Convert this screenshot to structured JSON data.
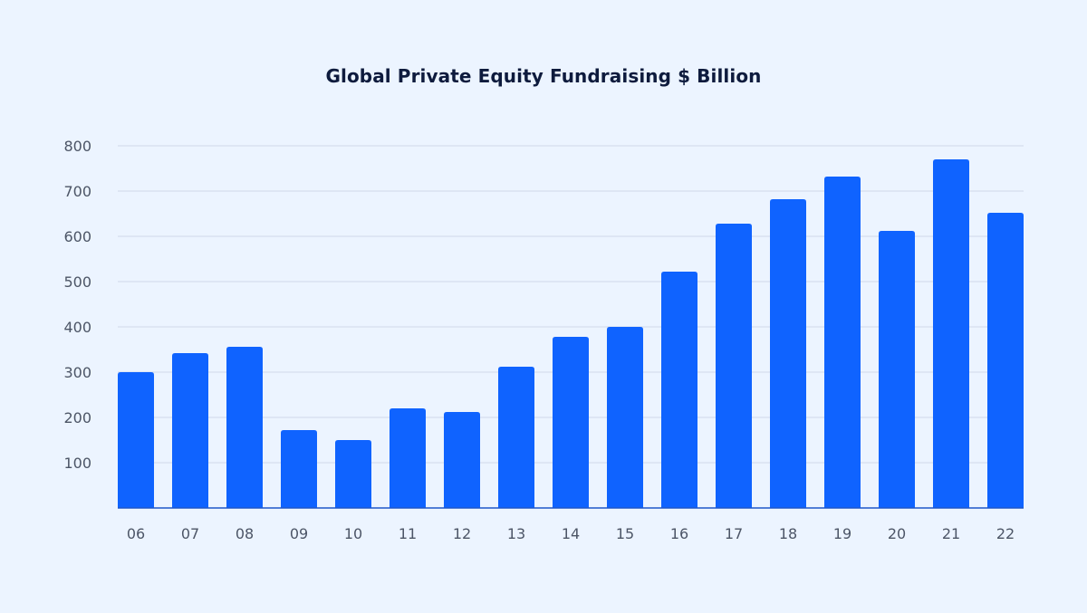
{
  "chart_data": {
    "type": "bar",
    "title": "Global Private Equity Fundraising $ Billion",
    "xlabel": "",
    "ylabel": "",
    "categories": [
      "06",
      "07",
      "08",
      "09",
      "10",
      "11",
      "12",
      "13",
      "14",
      "15",
      "16",
      "17",
      "18",
      "19",
      "20",
      "21",
      "22"
    ],
    "values": [
      300,
      342,
      356,
      172,
      150,
      220,
      212,
      312,
      378,
      400,
      522,
      628,
      682,
      732,
      612,
      770,
      652
    ],
    "ylim": [
      0,
      800
    ],
    "yticks": [
      "100",
      "200",
      "300",
      "400",
      "500",
      "600",
      "700",
      "800"
    ],
    "ytick_values": [
      100,
      200,
      300,
      400,
      500,
      600,
      700,
      800
    ],
    "grid": true,
    "legend": "none",
    "colors": {
      "background": "#ecf4ff",
      "bar": "#0f63ff",
      "title": "#0e1b3d",
      "tick_label": "#4c5566",
      "grid": "#cfd9e8",
      "axis": "#1e57c9"
    }
  }
}
